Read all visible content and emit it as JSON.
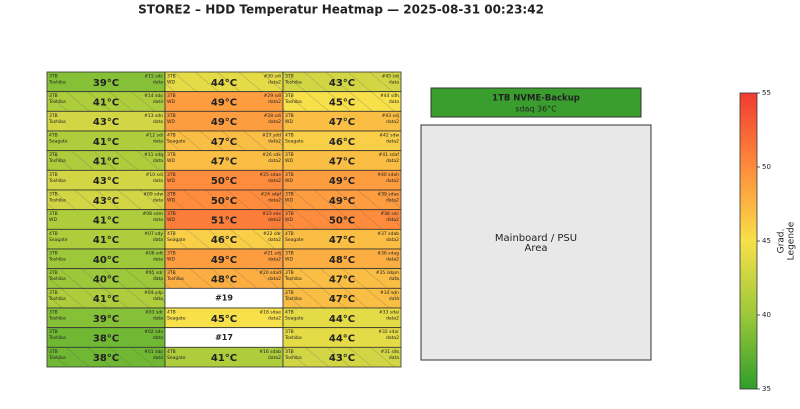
{
  "chart_data": {
    "type": "heatmap",
    "title": "STORE2 – HDD Temperatur Heatmap — 2025-08-31 00:23:42",
    "columns": [
      [
        {
          "size": "3TB",
          "brand": "Toshiba",
          "temp": 39,
          "temp_label": "39°C",
          "slot": "#15 sdc",
          "pool": "data",
          "hatched": false
        },
        {
          "size": "3TB",
          "brand": "Toshiba",
          "temp": 41,
          "temp_label": "41°C",
          "slot": "#14 sdo",
          "pool": "data",
          "hatched": true
        },
        {
          "size": "3TB",
          "brand": "Toshiba",
          "temp": 43,
          "temp_label": "43°C",
          "slot": "#13 sdn",
          "pool": "data",
          "hatched": false
        },
        {
          "size": "4TB",
          "brand": "Seagate",
          "temp": 41,
          "temp_label": "41°C",
          "slot": "#12 sdi",
          "pool": "data",
          "hatched": false
        },
        {
          "size": "3TB",
          "brand": "Toshiba",
          "temp": 41,
          "temp_label": "41°C",
          "slot": "#11 sdq",
          "pool": "data",
          "hatched": true
        },
        {
          "size": "3TB",
          "brand": "Toshiba",
          "temp": 43,
          "temp_label": "43°C",
          "slot": "#10 sdi",
          "pool": "data",
          "hatched": false
        },
        {
          "size": "3TB",
          "brand": "Toshiba",
          "temp": 43,
          "temp_label": "43°C",
          "slot": "#09 sdw",
          "pool": "data",
          "hatched": true
        },
        {
          "size": "3TB",
          "brand": "WD",
          "temp": 41,
          "temp_label": "41°C",
          "slot": "#08 sdm",
          "pool": "data",
          "hatched": false
        },
        {
          "size": "4TB",
          "brand": "Seagate",
          "temp": 41,
          "temp_label": "41°C",
          "slot": "#07 sdy",
          "pool": "data",
          "hatched": false
        },
        {
          "size": "3TB",
          "brand": "Toshiba",
          "temp": 40,
          "temp_label": "40°C",
          "slot": "#06 sdt",
          "pool": "data",
          "hatched": false
        },
        {
          "size": "3TB",
          "brand": "Toshiba",
          "temp": 40,
          "temp_label": "40°C",
          "slot": "#05 sdr",
          "pool": "data",
          "hatched": true
        },
        {
          "size": "3TB",
          "brand": "Toshiba",
          "temp": 41,
          "temp_label": "41°C",
          "slot": "#04 sdp",
          "pool": "data",
          "hatched": true
        },
        {
          "size": "3TB",
          "brand": "Toshiba",
          "temp": 39,
          "temp_label": "39°C",
          "slot": "#03 sdr",
          "pool": "data",
          "hatched": false
        },
        {
          "size": "3TB",
          "brand": "Toshiba",
          "temp": 38,
          "temp_label": "38°C",
          "slot": "#02 sdv",
          "pool": "data",
          "hatched": false
        },
        {
          "size": "3TB",
          "brand": "Toshiba",
          "temp": 38,
          "temp_label": "38°C",
          "slot": "#01 sdo",
          "pool": "data",
          "hatched": true
        }
      ],
      [
        {
          "size": "3TB",
          "brand": "WD",
          "temp": 44,
          "temp_label": "44°C",
          "slot": "#30 sdi",
          "pool": "data2",
          "hatched": true
        },
        {
          "size": "3TB",
          "brand": "WD",
          "temp": 49,
          "temp_label": "49°C",
          "slot": "#29 sdl",
          "pool": "data2",
          "hatched": false
        },
        {
          "size": "3TB",
          "brand": "WD",
          "temp": 49,
          "temp_label": "49°C",
          "slot": "#28 sdi",
          "pool": "data2",
          "hatched": false
        },
        {
          "size": "4TB",
          "brand": "Seagate",
          "temp": 47,
          "temp_label": "47°C",
          "slot": "#27 sdd",
          "pool": "data2",
          "hatched": true
        },
        {
          "size": "3TB",
          "brand": "WD",
          "temp": 47,
          "temp_label": "47°C",
          "slot": "#26 sdk",
          "pool": "data2",
          "hatched": false
        },
        {
          "size": "3TB",
          "brand": "WD",
          "temp": 50,
          "temp_label": "50°C",
          "slot": "#25 sdae",
          "pool": "data2",
          "hatched": false
        },
        {
          "size": "3TB",
          "brand": "WD",
          "temp": 50,
          "temp_label": "50°C",
          "slot": "#24 sdaf",
          "pool": "data2",
          "hatched": true
        },
        {
          "size": "3TB",
          "brand": "WD",
          "temp": 51,
          "temp_label": "51°C",
          "slot": "#23 sdx",
          "pool": "data2",
          "hatched": false
        },
        {
          "size": "4TB",
          "brand": "Seagate",
          "temp": 46,
          "temp_label": "46°C",
          "slot": "#22 sdr",
          "pool": "data2",
          "hatched": true
        },
        {
          "size": "3TB",
          "brand": "WD",
          "temp": 49,
          "temp_label": "49°C",
          "slot": "#21 sdj",
          "pool": "data2",
          "hatched": false
        },
        {
          "size": "3TB",
          "brand": "Toshiba",
          "temp": 48,
          "temp_label": "48°C",
          "slot": "#20 sdad",
          "pool": "data2",
          "hatched": true
        },
        {
          "slot": "#19"
        },
        {
          "size": "4TB",
          "brand": "Seagate",
          "temp": 45,
          "temp_label": "45°C",
          "slot": "#18 sdae",
          "pool": "data2",
          "hatched": false
        },
        {
          "slot": "#17"
        },
        {
          "size": "4TB",
          "brand": "Seagate",
          "temp": 41,
          "temp_label": "41°C",
          "slot": "#16 sdab",
          "pool": "data2",
          "hatched": false
        }
      ],
      [
        {
          "size": "3TB",
          "brand": "Toshiba",
          "temp": 43,
          "temp_label": "43°C",
          "slot": "#45 sdi",
          "pool": "data",
          "hatched": true
        },
        {
          "size": "3TB",
          "brand": "Toshiba",
          "temp": 45,
          "temp_label": "45°C",
          "slot": "#44 sdh",
          "pool": "data",
          "hatched": true
        },
        {
          "size": "3TB",
          "brand": "WD",
          "temp": 47,
          "temp_label": "47°C",
          "slot": "#43 sdj",
          "pool": "data2",
          "hatched": false
        },
        {
          "size": "4TB",
          "brand": "Seagate",
          "temp": 46,
          "temp_label": "46°C",
          "slot": "#42 sdw",
          "pool": "data2",
          "hatched": false
        },
        {
          "size": "3TB",
          "brand": "WD",
          "temp": 47,
          "temp_label": "47°C",
          "slot": "#41 sdaf",
          "pool": "data2",
          "hatched": false
        },
        {
          "size": "3TB",
          "brand": "WD",
          "temp": 49,
          "temp_label": "49°C",
          "slot": "#40 sdah",
          "pool": "data2",
          "hatched": false
        },
        {
          "size": "3TB",
          "brand": "WD",
          "temp": 49,
          "temp_label": "49°C",
          "slot": "#39 sdae",
          "pool": "data2",
          "hatched": true
        },
        {
          "size": "3TB",
          "brand": "WD",
          "temp": 50,
          "temp_label": "50°C",
          "slot": "#38 sdc",
          "pool": "data2",
          "hatched": true
        },
        {
          "size": "4TB",
          "brand": "Seagate",
          "temp": 47,
          "temp_label": "47°C",
          "slot": "#37 sdab",
          "pool": "data2",
          "hatched": false
        },
        {
          "size": "3TB",
          "brand": "WD",
          "temp": 48,
          "temp_label": "48°C",
          "slot": "#36 sdag",
          "pool": "data2",
          "hatched": false
        },
        {
          "size": "3TB",
          "brand": "Toshiba",
          "temp": 47,
          "temp_label": "47°C",
          "slot": "#35 sdam",
          "pool": "data",
          "hatched": true
        },
        {
          "size": "3TB",
          "brand": "Toshiba",
          "temp": 47,
          "temp_label": "47°C",
          "slot": "#34 sdn",
          "pool": "data",
          "hatched": true
        },
        {
          "size": "4TB",
          "brand": "Seagate",
          "temp": 44,
          "temp_label": "44°C",
          "slot": "#33 sdai",
          "pool": "data2",
          "hatched": false
        },
        {
          "size": "3TB",
          "brand": "Toshiba",
          "temp": 44,
          "temp_label": "44°C",
          "slot": "#32 sdar",
          "pool": "data2",
          "hatched": false
        },
        {
          "size": "3TB",
          "brand": "Toshiba",
          "temp": 43,
          "temp_label": "43°C",
          "slot": "#31 sds",
          "pool": "data",
          "hatched": true
        }
      ]
    ],
    "nvme": {
      "title": "1TB NVME-Backup",
      "detail": "sdaq  36°C",
      "color": "#3a9e2e"
    },
    "mainboard": {
      "lines": [
        "Mainboard / PSU",
        "Area"
      ]
    },
    "colorbar": {
      "lim": [
        35,
        55
      ],
      "ticks": [
        35,
        40,
        45,
        50,
        55
      ],
      "label_lines": [
        "Grad.",
        "Legende"
      ],
      "colormap": [
        "#2f9e2a",
        "#9cc83a",
        "#f7e04a",
        "#ff8c3c",
        "#f03c30"
      ]
    }
  }
}
